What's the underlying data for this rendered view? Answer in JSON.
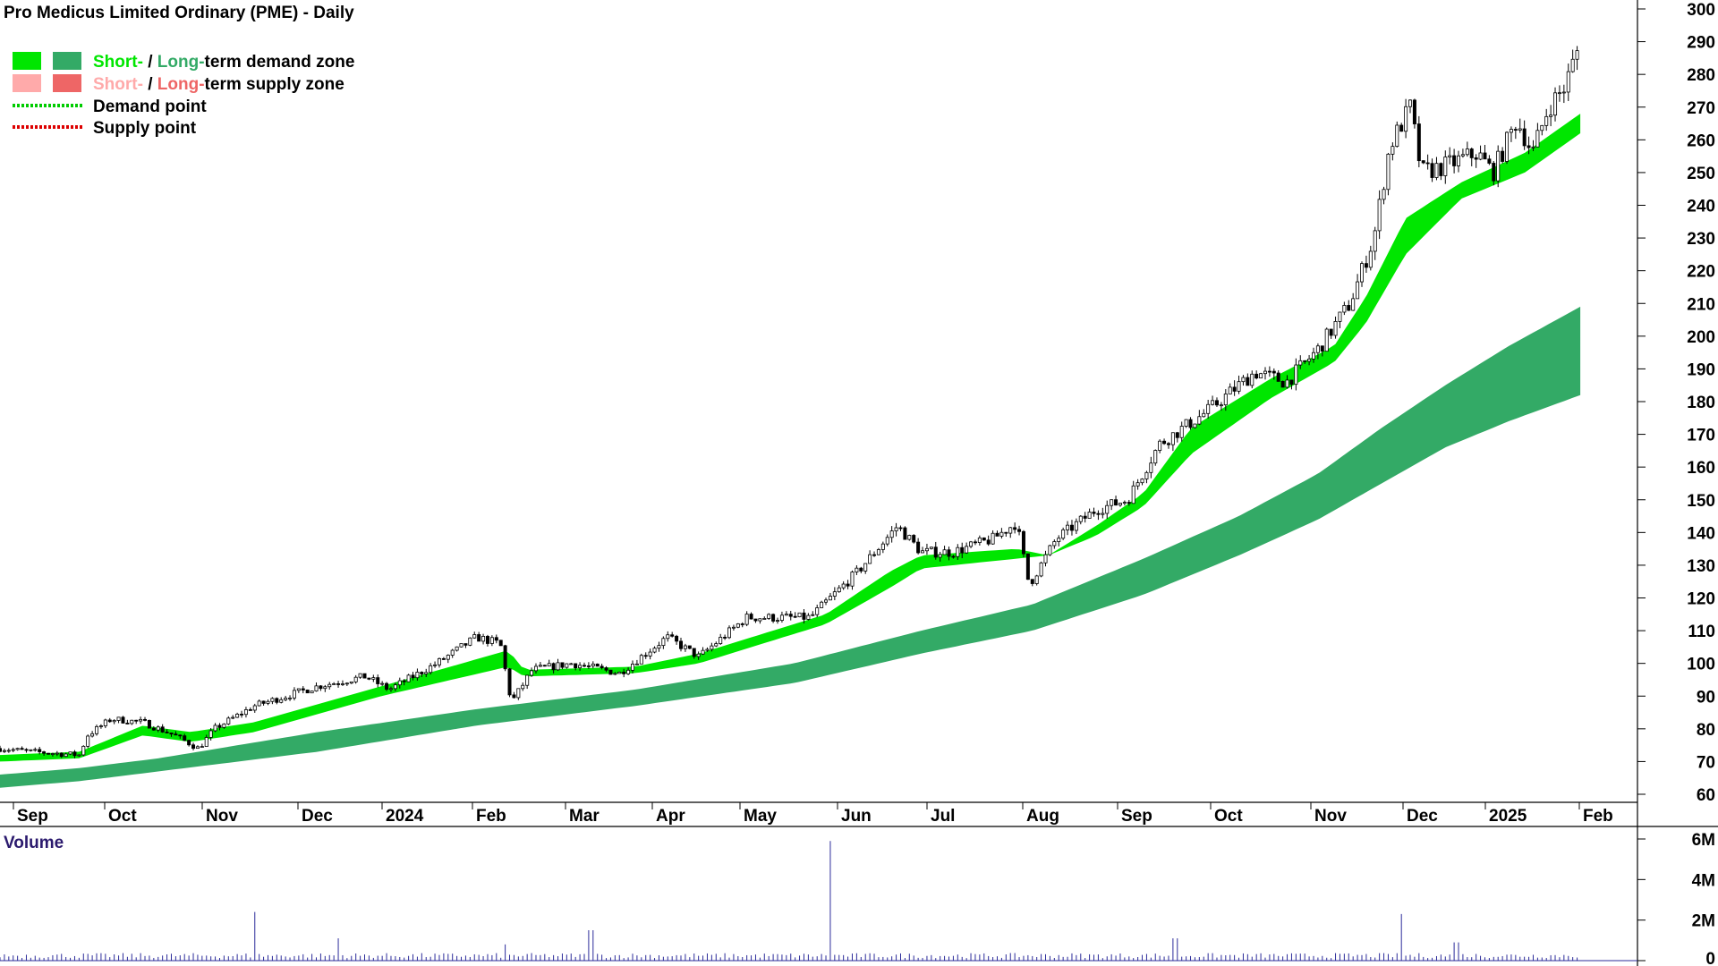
{
  "chart_data": {
    "type": "candlestick",
    "title": "Pro Medicus Limited Ordinary (PME) - Daily",
    "legend": {
      "placement": "top-left",
      "items": [
        {
          "short": "Short-",
          "sep": " / ",
          "long": "Long-",
          "rest": "term demand zone",
          "short_color": "#00e600",
          "long_color": "#33aa66"
        },
        {
          "short": "Short-",
          "sep": " / ",
          "long": "Long-",
          "rest": "term supply zone",
          "short_color": "#ffaaaa",
          "long_color": "#ee6666"
        },
        {
          "label": "Demand point",
          "color": "#00cc00"
        },
        {
          "label": "Supply point",
          "color": "#dd0000"
        }
      ]
    },
    "x_tick_labels": [
      "Sep",
      "Oct",
      "Nov",
      "Dec",
      "2024",
      "Feb",
      "Mar",
      "Apr",
      "May",
      "Jun",
      "Jul",
      "Aug",
      "Sep",
      "Oct",
      "Nov",
      "Dec",
      "2025",
      "Feb"
    ],
    "y_tick_labels": [
      "300",
      "290",
      "280",
      "270",
      "260",
      "250",
      "240",
      "230",
      "220",
      "210",
      "200",
      "190",
      "180",
      "170",
      "160",
      "150",
      "140",
      "130",
      "120",
      "110",
      "100",
      "90",
      "80",
      "70",
      "60"
    ],
    "ylim": [
      55,
      300
    ],
    "price_path": [
      [
        0,
        74
      ],
      [
        0.02,
        73
      ],
      [
        0.05,
        72
      ],
      [
        0.055,
        78
      ],
      [
        0.07,
        83
      ],
      [
        0.09,
        82
      ],
      [
        0.11,
        78
      ],
      [
        0.125,
        74
      ],
      [
        0.135,
        80
      ],
      [
        0.16,
        87
      ],
      [
        0.2,
        93
      ],
      [
        0.23,
        96
      ],
      [
        0.245,
        92
      ],
      [
        0.275,
        100
      ],
      [
        0.3,
        108
      ],
      [
        0.315,
        106
      ],
      [
        0.322,
        88
      ],
      [
        0.335,
        98
      ],
      [
        0.36,
        100
      ],
      [
        0.39,
        97
      ],
      [
        0.42,
        108
      ],
      [
        0.44,
        102
      ],
      [
        0.47,
        114
      ],
      [
        0.51,
        114
      ],
      [
        0.54,
        128
      ],
      [
        0.565,
        142
      ],
      [
        0.58,
        134
      ],
      [
        0.6,
        134
      ],
      [
        0.625,
        138
      ],
      [
        0.64,
        143
      ],
      [
        0.648,
        124
      ],
      [
        0.665,
        138
      ],
      [
        0.69,
        147
      ],
      [
        0.71,
        150
      ],
      [
        0.73,
        167
      ],
      [
        0.76,
        177
      ],
      [
        0.79,
        189
      ],
      [
        0.81,
        186
      ],
      [
        0.83,
        196
      ],
      [
        0.85,
        210
      ],
      [
        0.865,
        230
      ],
      [
        0.875,
        258
      ],
      [
        0.888,
        270
      ],
      [
        0.895,
        250
      ],
      [
        0.91,
        252
      ],
      [
        0.93,
        256
      ],
      [
        0.94,
        250
      ],
      [
        0.955,
        266
      ],
      [
        0.965,
        256
      ],
      [
        0.975,
        270
      ],
      [
        0.985,
        276
      ],
      [
        0.993,
        287
      ]
    ],
    "short_demand_zone": {
      "upper": [
        [
          0,
          72
        ],
        [
          0.05,
          73
        ],
        [
          0.09,
          81
        ],
        [
          0.12,
          79
        ],
        [
          0.16,
          82
        ],
        [
          0.24,
          93
        ],
        [
          0.32,
          104
        ],
        [
          0.33,
          98
        ],
        [
          0.4,
          99
        ],
        [
          0.44,
          103
        ],
        [
          0.52,
          115
        ],
        [
          0.56,
          128
        ],
        [
          0.58,
          133
        ],
        [
          0.64,
          135
        ],
        [
          0.66,
          133
        ],
        [
          0.69,
          142
        ],
        [
          0.72,
          152
        ],
        [
          0.75,
          172
        ],
        [
          0.8,
          187
        ],
        [
          0.84,
          197
        ],
        [
          0.86,
          212
        ],
        [
          0.885,
          236
        ],
        [
          0.92,
          247
        ],
        [
          0.96,
          256
        ],
        [
          0.995,
          268
        ]
      ],
      "lower": [
        [
          0,
          70
        ],
        [
          0.05,
          71
        ],
        [
          0.09,
          78
        ],
        [
          0.12,
          76
        ],
        [
          0.16,
          79
        ],
        [
          0.24,
          90
        ],
        [
          0.32,
          99
        ],
        [
          0.33,
          96
        ],
        [
          0.4,
          97
        ],
        [
          0.44,
          100
        ],
        [
          0.52,
          112
        ],
        [
          0.56,
          123
        ],
        [
          0.58,
          129
        ],
        [
          0.64,
          132
        ],
        [
          0.66,
          133
        ],
        [
          0.69,
          139
        ],
        [
          0.72,
          148
        ],
        [
          0.75,
          164
        ],
        [
          0.8,
          181
        ],
        [
          0.84,
          192
        ],
        [
          0.86,
          204
        ],
        [
          0.885,
          225
        ],
        [
          0.92,
          242
        ],
        [
          0.96,
          250
        ],
        [
          0.995,
          262
        ]
      ]
    },
    "long_demand_zone": {
      "upper": [
        [
          0,
          66
        ],
        [
          0.05,
          68
        ],
        [
          0.1,
          71
        ],
        [
          0.2,
          79
        ],
        [
          0.3,
          86
        ],
        [
          0.4,
          92
        ],
        [
          0.5,
          100
        ],
        [
          0.58,
          110
        ],
        [
          0.65,
          118
        ],
        [
          0.72,
          132
        ],
        [
          0.78,
          145
        ],
        [
          0.83,
          158
        ],
        [
          0.87,
          172
        ],
        [
          0.91,
          185
        ],
        [
          0.95,
          197
        ],
        [
          0.995,
          209
        ]
      ],
      "lower": [
        [
          0,
          62
        ],
        [
          0.05,
          64
        ],
        [
          0.1,
          67
        ],
        [
          0.2,
          73
        ],
        [
          0.3,
          81
        ],
        [
          0.4,
          87
        ],
        [
          0.5,
          94
        ],
        [
          0.58,
          103
        ],
        [
          0.65,
          110
        ],
        [
          0.72,
          121
        ],
        [
          0.78,
          133
        ],
        [
          0.83,
          144
        ],
        [
          0.87,
          155
        ],
        [
          0.91,
          166
        ],
        [
          0.95,
          174
        ],
        [
          0.995,
          182
        ]
      ]
    },
    "volume": {
      "label": "Volume",
      "y_tick_labels": [
        "6M",
        "4M",
        "2M",
        "0"
      ],
      "ylim": [
        0,
        6
      ],
      "baseline": 0.25,
      "spikes": [
        [
          0.16,
          2.4
        ],
        [
          0.213,
          1.1
        ],
        [
          0.318,
          0.8
        ],
        [
          0.372,
          1.5
        ],
        [
          0.523,
          5.9
        ],
        [
          0.74,
          1.1
        ],
        [
          0.883,
          2.3
        ],
        [
          0.917,
          0.9
        ]
      ]
    },
    "grid": false
  }
}
